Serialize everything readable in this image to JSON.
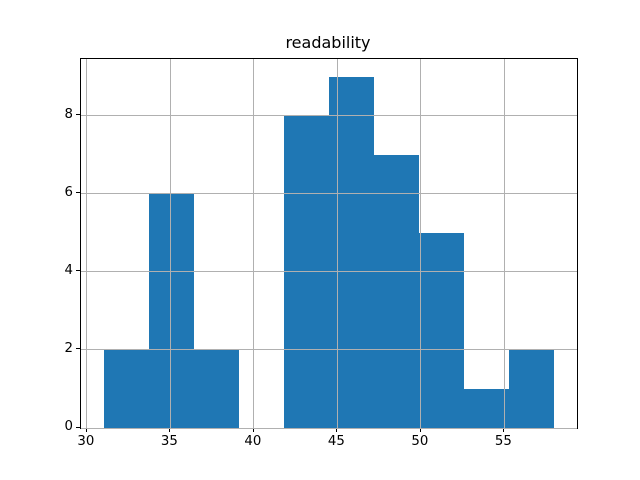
{
  "chart_data": {
    "type": "bar",
    "subtype": "histogram",
    "title": "readability",
    "bin_edges": [
      31.0,
      33.7,
      36.4,
      39.1,
      41.8,
      44.5,
      47.2,
      49.9,
      52.6,
      55.3,
      58.0
    ],
    "values": [
      2,
      6,
      2,
      0,
      8,
      9,
      7,
      5,
      1,
      2
    ],
    "xlabel": "",
    "ylabel": "",
    "xlim": [
      29.65,
      59.35
    ],
    "ylim": [
      0,
      9.45
    ],
    "x_ticks": [
      30,
      35,
      40,
      45,
      50,
      55
    ],
    "y_ticks": [
      0,
      2,
      4,
      6,
      8
    ],
    "grid": true,
    "legend": null,
    "bar_color": "#1f77b4",
    "grid_color": "#b0b0b0",
    "spine_color": "#000000",
    "background_color": "#ffffff"
  }
}
